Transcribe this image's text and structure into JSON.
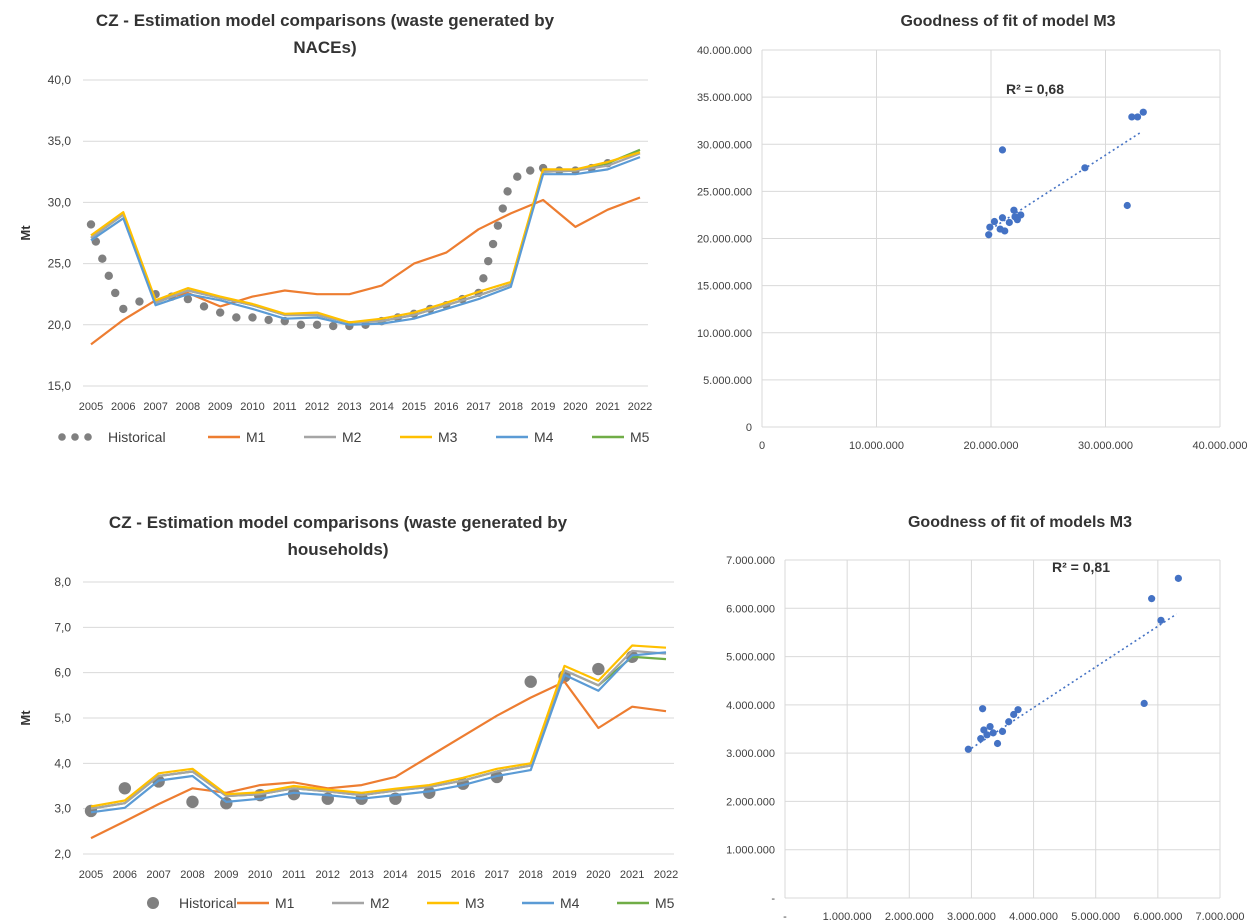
{
  "colors": {
    "historical": "#808080",
    "M1": "#ED7D31",
    "M2": "#A5A5A5",
    "M3": "#FFC000",
    "M4": "#5B9BD5",
    "M5": "#70AD47",
    "scatter": "#4472C4",
    "grid": "#D9D9D9",
    "text": "#404040"
  },
  "chart_data": [
    {
      "type": "line",
      "title_line1": "CZ - Estimation model comparisons (waste generated by",
      "title_line2": "NACEs)",
      "xlabel": "",
      "ylabel": "Mt",
      "ylim": [
        15,
        40
      ],
      "yticks": [
        "15,0",
        "20,0",
        "25,0",
        "30,0",
        "35,0",
        "40,0"
      ],
      "grid": "horizontal",
      "legend_position": "bottom",
      "categories": [
        "2005",
        "2006",
        "2007",
        "2008",
        "2009",
        "2010",
        "2011",
        "2012",
        "2013",
        "2014",
        "2015",
        "2016",
        "2017",
        "2018",
        "2019",
        "2020",
        "2021",
        "2022"
      ],
      "historical": {
        "name": "Historical",
        "x": [
          2005.0,
          2005.15,
          2005.35,
          2005.55,
          2005.75,
          2006.0,
          2006.5,
          2007.0,
          2007.5,
          2008.0,
          2008.5,
          2009.0,
          2009.5,
          2010.0,
          2010.5,
          2011.0,
          2011.5,
          2012.0,
          2012.5,
          2013.0,
          2013.5,
          2014.0,
          2014.5,
          2015.0,
          2015.5,
          2016.0,
          2016.5,
          2017.0,
          2017.15,
          2017.3,
          2017.45,
          2017.6,
          2017.75,
          2017.9,
          2018.2,
          2018.6,
          2019.0,
          2019.5,
          2020.0,
          2020.5,
          2021.0
        ],
        "y": [
          28.2,
          26.8,
          25.4,
          24.0,
          22.6,
          21.3,
          21.9,
          22.5,
          22.3,
          22.1,
          21.5,
          21.0,
          20.6,
          20.6,
          20.4,
          20.3,
          20.0,
          20.0,
          19.9,
          19.9,
          20.0,
          20.3,
          20.6,
          20.9,
          21.3,
          21.6,
          22.1,
          22.6,
          23.8,
          25.2,
          26.6,
          28.1,
          29.5,
          30.9,
          32.1,
          32.6,
          32.8,
          32.6,
          32.6,
          32.8,
          33.2
        ]
      },
      "series": [
        {
          "name": "M1",
          "values": [
            18.4,
            20.4,
            22.0,
            22.6,
            21.5,
            22.3,
            22.8,
            22.5,
            22.5,
            23.2,
            25.0,
            25.9,
            27.8,
            29.1,
            30.2,
            28.0,
            29.4,
            30.4
          ]
        },
        {
          "name": "M2",
          "values": [
            27.1,
            29.0,
            21.8,
            22.8,
            22.2,
            21.6,
            20.8,
            20.8,
            20.2,
            20.3,
            20.8,
            21.6,
            22.4,
            23.3,
            32.5,
            32.6,
            33.0,
            34.0
          ]
        },
        {
          "name": "M3",
          "values": [
            27.3,
            29.2,
            22.0,
            23.0,
            22.3,
            21.7,
            20.9,
            21.0,
            20.2,
            20.5,
            21.0,
            21.8,
            22.7,
            23.5,
            32.7,
            32.7,
            33.3,
            34.1
          ]
        },
        {
          "name": "M4",
          "values": [
            26.9,
            28.7,
            21.6,
            22.5,
            22.0,
            21.3,
            20.5,
            20.6,
            20.0,
            20.1,
            20.5,
            21.3,
            22.1,
            23.1,
            32.3,
            32.3,
            32.7,
            33.7
          ]
        },
        {
          "name": "M5",
          "values": [
            27.1,
            29.0,
            21.8,
            22.8,
            22.2,
            21.6,
            20.8,
            20.8,
            20.2,
            20.3,
            20.8,
            21.6,
            22.4,
            23.3,
            32.5,
            32.6,
            33.2,
            34.3
          ]
        }
      ]
    },
    {
      "type": "scatter",
      "title": "Goodness of fit of model M3",
      "annotation": "R² = 0,68",
      "xlim": [
        0,
        40000000
      ],
      "ylim": [
        0,
        40000000
      ],
      "xticks": [
        "0",
        "10.000.000",
        "20.000.000",
        "30.000.000",
        "40.000.000"
      ],
      "yticks": [
        "0",
        "5.000.000",
        "10.000.000",
        "15.000.000",
        "20.000.000",
        "25.000.000",
        "30.000.000",
        "35.000.000",
        "40.000.000"
      ],
      "grid": "both",
      "trendline": {
        "x": [
          20000000,
          33000000
        ],
        "y": [
          21000000,
          31200000
        ]
      },
      "points": {
        "x": [
          19800000,
          19900000,
          20300000,
          20800000,
          21200000,
          21000000,
          21600000,
          22000000,
          22300000,
          22600000,
          22100000,
          21000000,
          28200000,
          31900000,
          32300000,
          32800000,
          33300000
        ],
        "y": [
          20400000,
          21200000,
          21800000,
          21000000,
          20800000,
          22200000,
          21700000,
          23000000,
          22000000,
          22500000,
          22300000,
          29400000,
          27500000,
          23500000,
          32900000,
          32900000,
          33400000
        ]
      }
    },
    {
      "type": "line",
      "title_line1": "CZ - Estimation model comparisons (waste generated by",
      "title_line2": "households)",
      "xlabel": "",
      "ylabel": "Mt",
      "ylim": [
        2,
        8
      ],
      "yticks": [
        "2,0",
        "3,0",
        "4,0",
        "5,0",
        "6,0",
        "7,0",
        "8,0"
      ],
      "grid": "horizontal",
      "legend_position": "bottom",
      "categories": [
        "2005",
        "2006",
        "2007",
        "2008",
        "2009",
        "2010",
        "2011",
        "2012",
        "2013",
        "2014",
        "2015",
        "2016",
        "2017",
        "2018",
        "2019",
        "2020",
        "2021",
        "2022"
      ],
      "historical": {
        "name": "Historical",
        "x": [
          2005,
          2006,
          2007,
          2008,
          2009,
          2010,
          2011,
          2012,
          2013,
          2014,
          2015,
          2016,
          2017,
          2018,
          2019,
          2020,
          2021
        ],
        "y": [
          2.95,
          3.45,
          3.6,
          3.15,
          3.12,
          3.3,
          3.32,
          3.22,
          3.22,
          3.22,
          3.35,
          3.55,
          3.7,
          5.8,
          5.92,
          6.08,
          6.35
        ]
      },
      "series": [
        {
          "name": "M1",
          "values": [
            2.35,
            2.72,
            3.1,
            3.45,
            3.35,
            3.52,
            3.58,
            3.45,
            3.52,
            3.7,
            4.15,
            4.6,
            5.05,
            5.45,
            5.8,
            4.78,
            5.25,
            5.15
          ]
        },
        {
          "name": "M2",
          "values": [
            3.0,
            3.12,
            3.72,
            3.82,
            3.28,
            3.32,
            3.45,
            3.38,
            3.3,
            3.4,
            3.48,
            3.62,
            3.82,
            3.95,
            6.05,
            5.72,
            6.48,
            6.42
          ]
        },
        {
          "name": "M3",
          "values": [
            3.05,
            3.18,
            3.78,
            3.88,
            3.32,
            3.36,
            3.5,
            3.42,
            3.35,
            3.44,
            3.52,
            3.68,
            3.88,
            4.0,
            6.15,
            5.82,
            6.6,
            6.55
          ]
        },
        {
          "name": "M4",
          "values": [
            2.92,
            3.02,
            3.62,
            3.72,
            3.15,
            3.22,
            3.35,
            3.3,
            3.22,
            3.3,
            3.38,
            3.52,
            3.72,
            3.85,
            5.95,
            5.6,
            6.38,
            6.45
          ]
        },
        {
          "name": "M5",
          "values": [
            3.0,
            3.12,
            3.72,
            3.82,
            3.28,
            3.32,
            3.45,
            3.38,
            3.3,
            3.4,
            3.48,
            3.62,
            3.82,
            3.95,
            6.05,
            5.72,
            6.35,
            6.3
          ]
        }
      ]
    },
    {
      "type": "scatter",
      "title": "Goodness of fit of models M3",
      "annotation": "R² = 0,81",
      "xlim": [
        0,
        7000000
      ],
      "ylim": [
        0,
        7000000
      ],
      "xticks": [
        "-",
        "1.000.000",
        "2.000.000",
        "3.000.000",
        "4.000.000",
        "5.000.000",
        "6.000.000",
        "7.000.000"
      ],
      "yticks": [
        "-",
        "1.000.000",
        "2.000.000",
        "3.000.000",
        "4.000.000",
        "5.000.000",
        "6.000.000",
        "7.000.000"
      ],
      "grid": "both",
      "trendline": {
        "x": [
          3000000,
          6300000
        ],
        "y": [
          3100000,
          5880000
        ]
      },
      "points": {
        "x": [
          2950000,
          3150000,
          3200000,
          3250000,
          3300000,
          3350000,
          3420000,
          3500000,
          3600000,
          3680000,
          3750000,
          3180000,
          5780000,
          5900000,
          6050000,
          6330000
        ],
        "y": [
          3080000,
          3300000,
          3480000,
          3380000,
          3550000,
          3420000,
          3200000,
          3450000,
          3650000,
          3800000,
          3900000,
          3920000,
          4030000,
          6200000,
          5750000,
          6620000
        ]
      }
    }
  ]
}
